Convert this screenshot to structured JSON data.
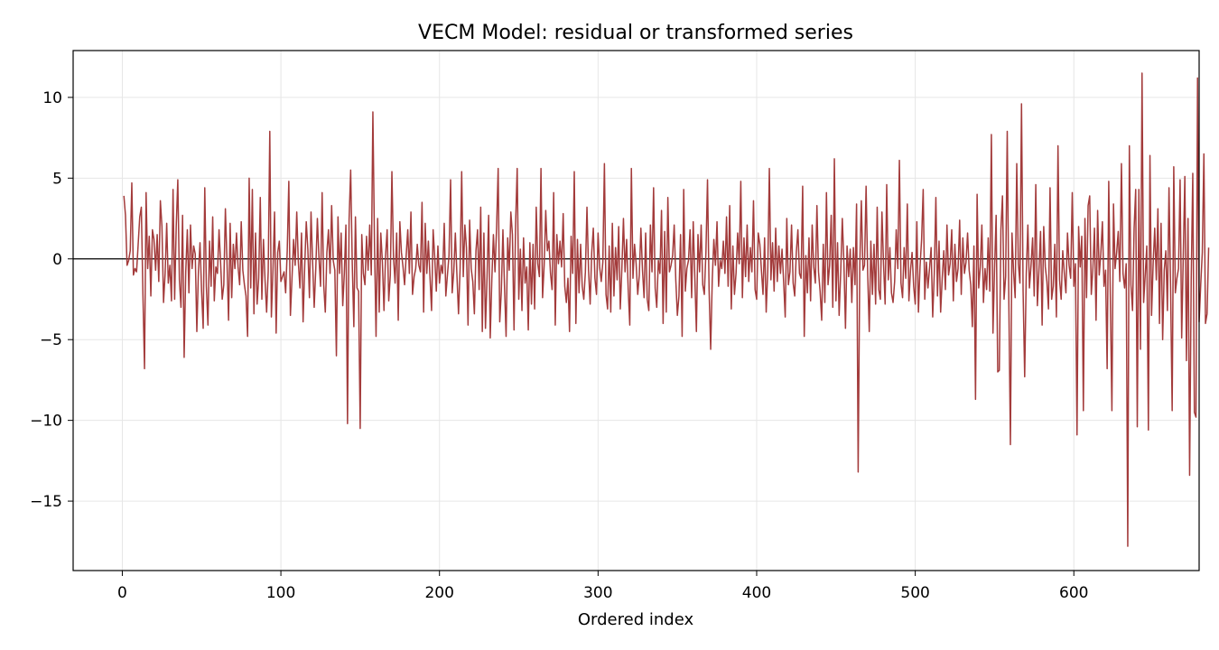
{
  "chart_data": {
    "type": "line",
    "title": "VECM Model: residual or transformed series",
    "xlabel": "Ordered index",
    "ylabel": "",
    "xlim": [
      -31,
      679
    ],
    "ylim": [
      -19.3,
      12.9
    ],
    "x_ticks": [
      0,
      100,
      200,
      300,
      400,
      500,
      600
    ],
    "x_tick_labels": [
      "0",
      "100",
      "200",
      "300",
      "400",
      "500",
      "600"
    ],
    "y_ticks": [
      10,
      5,
      0,
      -5,
      -10,
      -15
    ],
    "y_tick_labels": [
      "10",
      "5",
      "0",
      "−5",
      "−10",
      "−15"
    ],
    "grid": true,
    "reference_line_y": 0,
    "series_color": "#a33b3b",
    "reference_line_color": "#000000",
    "series": [
      {
        "x_start": 1,
        "values": [
          3.9,
          2.7,
          -0.4,
          -0.1,
          0.5,
          4.7,
          -1.0,
          -0.6,
          -0.8,
          0.9,
          2.6,
          3.2,
          -2.2,
          -6.8,
          4.1,
          -0.6,
          1.4,
          -2.3,
          1.8,
          1.2,
          -0.7,
          1.5,
          -1.4,
          3.6,
          2.0,
          -2.7,
          -0.9,
          2.2,
          -1.5,
          -0.4,
          -2.6,
          4.3,
          -2.5,
          2.0,
          4.9,
          -1.3,
          -3.0,
          2.7,
          -6.1,
          -0.8,
          1.8,
          -2.1,
          2.1,
          -0.6,
          0.8,
          0.3,
          -4.5,
          -0.8,
          1.0,
          -2.0,
          -4.3,
          4.4,
          -1.7,
          -4.1,
          1.1,
          -1.7,
          2.6,
          -2.6,
          -0.5,
          -0.9,
          1.8,
          -0.3,
          -2.5,
          -1.6,
          3.1,
          -0.1,
          -3.8,
          2.2,
          -2.4,
          0.9,
          -0.6,
          1.6,
          -0.5,
          -1.6,
          2.3,
          -0.7,
          -1.6,
          -2.3,
          -4.8,
          5.0,
          -1.8,
          4.3,
          -3.4,
          1.6,
          -2.8,
          -1.2,
          3.8,
          -2.5,
          1.2,
          -1.3,
          -3.3,
          -0.8,
          7.9,
          -3.6,
          -0.7,
          2.9,
          -4.6,
          0.4,
          1.1,
          -1.4,
          -1.1,
          -0.8,
          -2.1,
          0.5,
          4.8,
          -3.5,
          -1.2,
          1.2,
          -0.4,
          2.9,
          -0.2,
          -1.8,
          1.6,
          -3.9,
          -0.5,
          2.3,
          0.6,
          -2.4,
          2.9,
          -0.2,
          -3.0,
          -0.6,
          2.5,
          0.1,
          -1.7,
          4.1,
          -1.6,
          -3.3,
          0.4,
          1.8,
          -0.9,
          3.3,
          -0.1,
          -0.7,
          -6.0,
          2.6,
          -0.9,
          1.6,
          -2.9,
          -0.9,
          2.1,
          -10.2,
          2.4,
          5.5,
          -0.3,
          -4.2,
          2.6,
          -1.8,
          -2.0,
          -10.5,
          1.5,
          -0.9,
          -1.6,
          1.4,
          -0.7,
          2.1,
          -1.0,
          9.1,
          1.1,
          -4.8,
          2.5,
          -3.3,
          1.6,
          -0.2,
          -3.2,
          0.2,
          1.8,
          -2.6,
          -1.0,
          5.4,
          0.1,
          -1.5,
          1.6,
          -3.8,
          2.3,
          0.4,
          -0.5,
          -1.6,
          0.2,
          1.8,
          -0.9,
          2.9,
          -2.2,
          -1.1,
          -0.6,
          0.9,
          -0.4,
          -0.8,
          3.5,
          -3.3,
          2.2,
          -0.9,
          1.1,
          -1.1,
          -3.2,
          1.8,
          0.1,
          -2.0,
          0.8,
          -1.5,
          -0.4,
          -0.9,
          2.2,
          -2.3,
          -1.0,
          0.2,
          4.9,
          -2.1,
          -0.8,
          1.6,
          -1.0,
          -3.4,
          -0.6,
          5.4,
          -1.1,
          2.1,
          0.7,
          -4.1,
          2.4,
          -0.6,
          -1.4,
          -3.4,
          0.5,
          1.8,
          -1.9,
          3.2,
          -4.5,
          1.6,
          -4.3,
          -1.1,
          2.7,
          -4.9,
          -1.3,
          1.5,
          -0.8,
          1.9,
          5.6,
          -3.9,
          -2.0,
          1.8,
          -1.7,
          -4.8,
          1.3,
          -0.7,
          2.9,
          1.5,
          -4.4,
          2.2,
          5.6,
          -2.5,
          0.6,
          -3.2,
          1.3,
          -1.5,
          -0.5,
          -4.4,
          1.0,
          -2.8,
          0.9,
          -3.1,
          3.2,
          -0.3,
          -1.1,
          5.6,
          -2.4,
          -0.4,
          3.0,
          0.5,
          1.1,
          -0.9,
          -1.9,
          4.1,
          -4.1,
          1.5,
          -0.3,
          1.1,
          -0.5,
          2.8,
          -1.7,
          -2.7,
          -1.2,
          -4.5,
          1.4,
          -0.9,
          5.4,
          -4.0,
          1.2,
          -2.1,
          0.9,
          -1.7,
          -2.5,
          -0.8,
          3.2,
          -0.7,
          -2.8,
          0.4,
          1.9,
          -1.2,
          -2.2,
          1.6,
          -0.5,
          -1.4,
          -0.2,
          5.9,
          -2.2,
          -3.1,
          0.8,
          -3.3,
          2.2,
          -2.3,
          0.7,
          -1.3,
          2.0,
          -3.1,
          -0.6,
          2.5,
          -0.8,
          1.2,
          -1.9,
          -4.1,
          5.6,
          -1.2,
          0.9,
          -0.3,
          -2.2,
          -1.0,
          1.9,
          -0.7,
          -2.4,
          1.6,
          -2.5,
          -3.2,
          2.1,
          -0.8,
          4.4,
          -1.8,
          -3.0,
          -0.1,
          -0.9,
          3.0,
          -4.0,
          1.7,
          -3.3,
          3.8,
          -0.8,
          -0.4,
          0.2,
          2.1,
          -1.3,
          -3.5,
          -2.3,
          1.5,
          -4.8,
          4.3,
          -2.0,
          -0.6,
          -0.1,
          1.8,
          -2.4,
          2.3,
          -1.1,
          -4.5,
          1.5,
          -0.8,
          2.1,
          -1.6,
          -2.2,
          0.4,
          4.9,
          -1.9,
          -5.6,
          -1.3,
          1.2,
          -0.4,
          2.3,
          -1.7,
          -0.1,
          -0.6,
          1.1,
          -0.9,
          2.6,
          -1.7,
          3.3,
          -3.1,
          0.8,
          -2.2,
          -0.9,
          1.6,
          -0.3,
          4.8,
          -2.4,
          1.3,
          -1.1,
          2.1,
          -1.4,
          0.7,
          -0.8,
          3.6,
          -1.9,
          -2.5,
          1.6,
          0.9,
          -0.7,
          -2.2,
          1.3,
          -3.3,
          -0.7,
          5.6,
          -1.3,
          1.0,
          -2.0,
          1.9,
          -1.4,
          0.8,
          -0.9,
          0.6,
          -1.4,
          -3.6,
          2.5,
          -1.6,
          -0.8,
          2.1,
          -1.5,
          -2.3,
          0.4,
          1.8,
          -0.9,
          -1.2,
          4.5,
          -4.8,
          0.2,
          -2.1,
          1.3,
          -2.6,
          2.1,
          -0.5,
          -1.5,
          3.3,
          -0.8,
          -2.0,
          -3.8,
          0.9,
          -2.7,
          4.1,
          -1.6,
          -0.4,
          2.7,
          -3.0,
          6.2,
          -2.6,
          1.0,
          -3.5,
          -0.8,
          2.5,
          -0.2,
          -4.3,
          0.8,
          -1.1,
          0.6,
          -2.7,
          0.7,
          -1.6,
          3.4,
          -13.2,
          -0.5,
          3.6,
          -0.7,
          -0.4,
          4.5,
          -0.9,
          -4.5,
          1.1,
          -2.2,
          0.9,
          -2.8,
          3.2,
          -1.9,
          -2.5,
          2.9,
          -0.3,
          -2.8,
          4.6,
          -1.3,
          0.7,
          -2.1,
          -2.7,
          -1.4,
          1.8,
          -0.6,
          6.1,
          -1.5,
          -2.4,
          0.7,
          -1.2,
          3.4,
          -2.6,
          -0.7,
          0.4,
          -1.7,
          -2.8,
          2.3,
          -3.3,
          -0.5,
          1.2,
          4.3,
          -2.5,
          -0.2,
          -1.8,
          -0.6,
          0.7,
          -3.6,
          -0.9,
          3.8,
          -2.3,
          1.1,
          -3.3,
          -1.2,
          0.5,
          -1.9,
          2.1,
          -1.0,
          -0.3,
          1.8,
          -2.6,
          0.9,
          -1.4,
          -0.6,
          2.4,
          -2.2,
          1.3,
          -0.9,
          -0.2,
          1.6,
          -0.7,
          -1.6,
          -4.2,
          0.8,
          -8.7,
          4.0,
          -1.8,
          -0.5,
          2.1,
          -2.7,
          -0.6,
          -1.9,
          1.3,
          -2.0,
          7.7,
          -4.6,
          -0.6,
          2.7,
          -7.0,
          -6.9,
          1.8,
          3.9,
          -2.5,
          -1.1,
          7.9,
          -2.6,
          -11.5,
          1.6,
          -0.8,
          -2.4,
          5.9,
          -0.3,
          -1.5,
          9.6,
          -2.0,
          -7.3,
          -0.9,
          2.1,
          -1.8,
          -0.4,
          1.3,
          -2.3,
          4.6,
          -2.9,
          -0.7,
          1.7,
          -4.1,
          2.0,
          -0.5,
          -1.4,
          -3.1,
          4.4,
          -2.5,
          -1.7,
          0.9,
          -3.6,
          7.0,
          -1.3,
          -2.5,
          0.5,
          -0.9,
          -2.1,
          1.6,
          -0.4,
          -1.2,
          4.1,
          -1.7,
          -0.3,
          -10.9,
          2.0,
          -0.5,
          1.4,
          -9.4,
          2.5,
          -2.4,
          3.3,
          3.9,
          -2.2,
          -0.6,
          1.9,
          -3.8,
          3.0,
          -1.0,
          0.3,
          2.3,
          -1.7,
          -0.7,
          -6.8,
          4.8,
          -2.3,
          -9.4,
          3.4,
          -0.6,
          0.4,
          1.7,
          -1.4,
          5.9,
          -0.9,
          -1.8,
          -0.3,
          -17.8,
          7.0,
          -1.6,
          -3.2,
          1.9,
          4.3,
          -10.4,
          4.3,
          -5.6,
          11.5,
          -2.7,
          -1.0,
          0.8,
          -10.6,
          6.4,
          -3.5,
          -0.3,
          1.9,
          -1.3,
          3.1,
          -4.0,
          2.2,
          -5.0,
          -0.7,
          0.5,
          -3.2,
          4.4,
          -1.8,
          -9.4,
          5.7,
          -2.1,
          -1.2,
          -0.6,
          4.9,
          -4.9,
          0.2,
          5.1,
          -6.3,
          2.5,
          -13.4,
          -1.3,
          5.3,
          -9.5,
          -9.8,
          11.2,
          -3.9,
          -1.6,
          0.4,
          6.5,
          -4.0,
          -3.4,
          0.7
        ]
      }
    ]
  }
}
